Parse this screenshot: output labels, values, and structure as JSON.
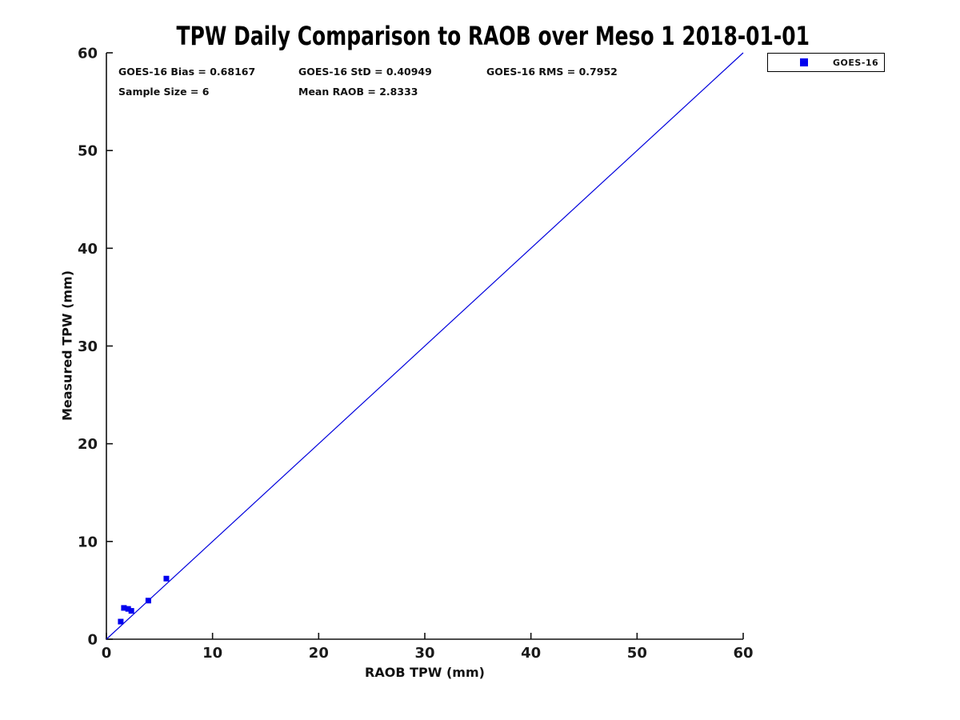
{
  "chart_data": {
    "type": "scatter",
    "title": "TPW Daily Comparison to RAOB over Meso 1 2018-01-01",
    "xlabel": "RAOB TPW (mm)",
    "ylabel": "Measured TPW (mm)",
    "xlim": [
      0,
      60
    ],
    "ylim": [
      0,
      60
    ],
    "xticks": [
      0,
      10,
      20,
      30,
      40,
      50,
      60
    ],
    "yticks": [
      0,
      10,
      20,
      30,
      40,
      50,
      60
    ],
    "grid": false,
    "legend_position": "top-right-outside",
    "series": [
      {
        "name": "GOES-16",
        "marker": "square",
        "color": "#0000ee",
        "marker_size_px": 7,
        "points": [
          [
            1.35,
            1.8
          ],
          [
            1.65,
            3.2
          ],
          [
            2.05,
            3.1
          ],
          [
            2.35,
            2.9
          ],
          [
            3.95,
            3.95
          ],
          [
            5.65,
            6.2
          ]
        ]
      }
    ],
    "reference_line": {
      "from": [
        0,
        0
      ],
      "to": [
        60,
        60
      ],
      "color": "#0000dd"
    },
    "annotations": [
      {
        "text": "GOES-16 Bias = 0.68167",
        "row": 0,
        "col": 0
      },
      {
        "text": "GOES-16 StD = 0.40949",
        "row": 0,
        "col": 1
      },
      {
        "text": "GOES-16 RMS = 0.7952",
        "row": 0,
        "col": 2
      },
      {
        "text": "Sample Size = 6",
        "row": 1,
        "col": 0
      },
      {
        "text": "Mean RAOB = 2.8333",
        "row": 1,
        "col": 1
      }
    ],
    "stats": {
      "bias": 0.68167,
      "std": 0.40949,
      "rms": 0.7952,
      "sample_size": 6,
      "mean_raob": 2.8333
    }
  }
}
